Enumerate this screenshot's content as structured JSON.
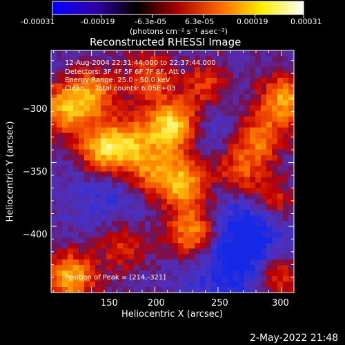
{
  "colorbar": {
    "tick_labels": [
      "-0.00031",
      "-0.00019",
      "-6.3e-05",
      "6.3e-05",
      "0.00019",
      "0.00031"
    ],
    "tick_values": [
      -0.00031,
      -0.00019,
      -6.3e-05,
      6.3e-05,
      0.00019,
      0.00031
    ],
    "unit_label": "(photons cm⁻² s⁻¹ asec⁻²)",
    "colors": [
      "#0000ff",
      "#3300aa",
      "#000000",
      "#aa0000",
      "#ff6600",
      "#ffee00",
      "#ffffff"
    ]
  },
  "chart_data": {
    "type": "heatmap",
    "title": "Reconstructed RHESSI Image",
    "xlabel": "Heliocentric X (arcsec)",
    "ylabel": "Heliocentric Y (arcsec)",
    "xlim": [
      118,
      310
    ],
    "ylim": [
      -452,
      -262
    ],
    "x_ticks": [
      150,
      200,
      250,
      300
    ],
    "y_ticks": [
      -300,
      -350,
      -400
    ],
    "x_tick_labels": [
      "150",
      "200",
      "250",
      "300"
    ],
    "y_tick_labels": [
      "−300",
      "−350",
      "−400"
    ],
    "peak": [
      214,
      -321
    ],
    "sources": [
      {
        "x": 214,
        "y": -321,
        "intensity": 1.0
      },
      {
        "x": 160,
        "y": -340,
        "intensity": 0.85
      },
      {
        "x": 222,
        "y": -366,
        "intensity": 0.75
      },
      {
        "x": 128,
        "y": -308,
        "intensity": 0.65
      },
      {
        "x": 150,
        "y": -296,
        "intensity": 0.6
      },
      {
        "x": 230,
        "y": -405,
        "intensity": 0.7
      },
      {
        "x": 303,
        "y": -300,
        "intensity": 0.7
      },
      {
        "x": 283,
        "y": -330,
        "intensity": 0.55
      },
      {
        "x": 268,
        "y": -357,
        "intensity": 0.5
      },
      {
        "x": 133,
        "y": -440,
        "intensity": 0.75
      },
      {
        "x": 195,
        "y": -282,
        "intensity": 0.45
      },
      {
        "x": 240,
        "y": -290,
        "intensity": 0.45
      },
      {
        "x": 175,
        "y": -415,
        "intensity": 0.4
      },
      {
        "x": 295,
        "y": -382,
        "intensity": 0.5
      },
      {
        "x": 300,
        "y": -440,
        "intensity": 0.45
      },
      {
        "x": 195,
        "y": -355,
        "intensity": 0.55
      },
      {
        "x": 182,
        "y": -332,
        "intensity": 0.45
      }
    ],
    "negative_regions": [
      {
        "x": 270,
        "y": -410,
        "intensity": 0.6
      },
      {
        "x": 255,
        "y": -440,
        "intensity": 0.5
      },
      {
        "x": 165,
        "y": -375,
        "intensity": 0.4
      },
      {
        "x": 240,
        "y": -318,
        "intensity": 0.35
      },
      {
        "x": 285,
        "y": -395,
        "intensity": 0.5
      }
    ]
  },
  "info": {
    "time_range": "12-Aug-2004 22:31:44.000 to 22:37:44.000",
    "detectors": "Detectors: 3F 4F 5F 6F 7F 8F, Att 0",
    "energy_range": "Energy Range: 25.0 - 50.0 keV",
    "clean_line": "Clean     Total counts: 6.05E+03",
    "peak_position": "Position of Peak = [214,-321]"
  },
  "footer": {
    "date": "2-May-2022 21:48"
  }
}
